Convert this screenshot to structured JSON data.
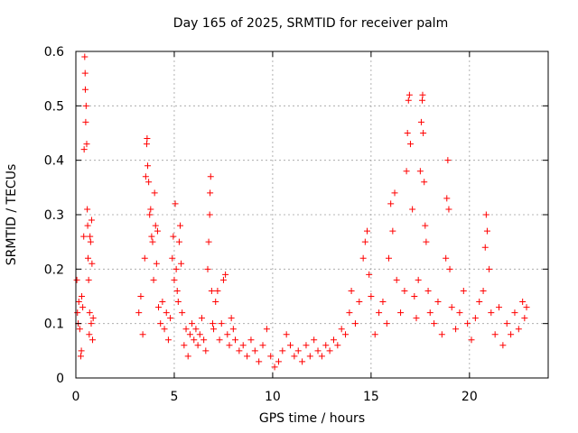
{
  "chart_data": {
    "type": "scatter",
    "title": "Day 165 of 2025, SRMTID for receiver palm",
    "xlabel": "GPS time / hours",
    "ylabel": "SRMTID / TECUs",
    "xlim": [
      0,
      24
    ],
    "ylim": [
      0,
      0.6
    ],
    "x_ticks": [
      0,
      5,
      10,
      15,
      20
    ],
    "x_tick_labels": [
      "0",
      "5",
      "10",
      "15",
      "20"
    ],
    "y_ticks": [
      0,
      0.1,
      0.2,
      0.3,
      0.4,
      0.5,
      0.6
    ],
    "y_tick_labels": [
      "0",
      "0.1",
      "0.2",
      "0.3",
      "0.4",
      "0.5",
      "0.6"
    ],
    "grid": true,
    "marker": "+",
    "color": "#ff0000",
    "series": [
      {
        "name": "SRMTID",
        "points": [
          [
            0.05,
            0.18
          ],
          [
            0.08,
            0.12
          ],
          [
            0.12,
            0.1
          ],
          [
            0.15,
            0.14
          ],
          [
            0.2,
            0.09
          ],
          [
            0.25,
            0.04
          ],
          [
            0.28,
            0.05
          ],
          [
            0.3,
            0.15
          ],
          [
            0.35,
            0.13
          ],
          [
            0.4,
            0.26
          ],
          [
            0.42,
            0.42
          ],
          [
            0.45,
            0.59
          ],
          [
            0.47,
            0.56
          ],
          [
            0.48,
            0.53
          ],
          [
            0.5,
            0.47
          ],
          [
            0.52,
            0.5
          ],
          [
            0.55,
            0.43
          ],
          [
            0.58,
            0.31
          ],
          [
            0.6,
            0.28
          ],
          [
            0.62,
            0.22
          ],
          [
            0.65,
            0.18
          ],
          [
            0.68,
            0.08
          ],
          [
            0.7,
            0.12
          ],
          [
            0.72,
            0.26
          ],
          [
            0.75,
            0.25
          ],
          [
            0.78,
            0.1
          ],
          [
            0.8,
            0.29
          ],
          [
            0.82,
            0.21
          ],
          [
            0.85,
            0.07
          ],
          [
            0.88,
            0.11
          ],
          [
            3.2,
            0.12
          ],
          [
            3.3,
            0.15
          ],
          [
            3.4,
            0.08
          ],
          [
            3.5,
            0.22
          ],
          [
            3.55,
            0.37
          ],
          [
            3.6,
            0.43
          ],
          [
            3.62,
            0.44
          ],
          [
            3.65,
            0.39
          ],
          [
            3.7,
            0.36
          ],
          [
            3.75,
            0.3
          ],
          [
            3.8,
            0.31
          ],
          [
            3.85,
            0.26
          ],
          [
            3.9,
            0.25
          ],
          [
            3.95,
            0.18
          ],
          [
            4.0,
            0.34
          ],
          [
            4.05,
            0.28
          ],
          [
            4.1,
            0.21
          ],
          [
            4.15,
            0.27
          ],
          [
            4.2,
            0.13
          ],
          [
            4.3,
            0.1
          ],
          [
            4.4,
            0.14
          ],
          [
            4.5,
            0.09
          ],
          [
            4.6,
            0.12
          ],
          [
            4.7,
            0.07
          ],
          [
            4.8,
            0.11
          ],
          [
            4.9,
            0.22
          ],
          [
            4.95,
            0.26
          ],
          [
            5.0,
            0.18
          ],
          [
            5.05,
            0.32
          ],
          [
            5.1,
            0.2
          ],
          [
            5.15,
            0.16
          ],
          [
            5.2,
            0.14
          ],
          [
            5.25,
            0.25
          ],
          [
            5.3,
            0.28
          ],
          [
            5.35,
            0.21
          ],
          [
            5.4,
            0.12
          ],
          [
            5.5,
            0.06
          ],
          [
            5.6,
            0.09
          ],
          [
            5.7,
            0.04
          ],
          [
            5.8,
            0.08
          ],
          [
            5.9,
            0.1
          ],
          [
            6.0,
            0.07
          ],
          [
            6.1,
            0.09
          ],
          [
            6.2,
            0.06
          ],
          [
            6.3,
            0.08
          ],
          [
            6.4,
            0.11
          ],
          [
            6.5,
            0.07
          ],
          [
            6.6,
            0.05
          ],
          [
            6.7,
            0.2
          ],
          [
            6.75,
            0.25
          ],
          [
            6.8,
            0.3
          ],
          [
            6.82,
            0.34
          ],
          [
            6.85,
            0.37
          ],
          [
            6.9,
            0.16
          ],
          [
            6.95,
            0.1
          ],
          [
            7.0,
            0.09
          ],
          [
            7.1,
            0.14
          ],
          [
            7.2,
            0.16
          ],
          [
            7.3,
            0.07
          ],
          [
            7.4,
            0.1
          ],
          [
            7.5,
            0.18
          ],
          [
            7.6,
            0.19
          ],
          [
            7.7,
            0.08
          ],
          [
            7.8,
            0.06
          ],
          [
            7.9,
            0.11
          ],
          [
            8.0,
            0.09
          ],
          [
            8.1,
            0.07
          ],
          [
            8.3,
            0.05
          ],
          [
            8.5,
            0.06
          ],
          [
            8.7,
            0.04
          ],
          [
            8.9,
            0.07
          ],
          [
            9.1,
            0.05
          ],
          [
            9.3,
            0.03
          ],
          [
            9.5,
            0.06
          ],
          [
            9.7,
            0.09
          ],
          [
            9.9,
            0.04
          ],
          [
            10.1,
            0.02
          ],
          [
            10.3,
            0.03
          ],
          [
            10.5,
            0.05
          ],
          [
            10.7,
            0.08
          ],
          [
            10.9,
            0.06
          ],
          [
            11.1,
            0.04
          ],
          [
            11.3,
            0.05
          ],
          [
            11.5,
            0.03
          ],
          [
            11.7,
            0.06
          ],
          [
            11.9,
            0.04
          ],
          [
            12.1,
            0.07
          ],
          [
            12.3,
            0.05
          ],
          [
            12.5,
            0.04
          ],
          [
            12.7,
            0.06
          ],
          [
            12.9,
            0.05
          ],
          [
            13.1,
            0.07
          ],
          [
            13.3,
            0.06
          ],
          [
            13.5,
            0.09
          ],
          [
            13.7,
            0.08
          ],
          [
            13.9,
            0.12
          ],
          [
            14.0,
            0.16
          ],
          [
            14.2,
            0.1
          ],
          [
            14.4,
            0.14
          ],
          [
            14.6,
            0.22
          ],
          [
            14.7,
            0.25
          ],
          [
            14.8,
            0.27
          ],
          [
            14.9,
            0.19
          ],
          [
            15.0,
            0.15
          ],
          [
            15.2,
            0.08
          ],
          [
            15.4,
            0.12
          ],
          [
            15.6,
            0.14
          ],
          [
            15.8,
            0.1
          ],
          [
            15.9,
            0.22
          ],
          [
            16.0,
            0.32
          ],
          [
            16.1,
            0.27
          ],
          [
            16.2,
            0.34
          ],
          [
            16.3,
            0.18
          ],
          [
            16.5,
            0.12
          ],
          [
            16.7,
            0.16
          ],
          [
            16.8,
            0.38
          ],
          [
            16.85,
            0.45
          ],
          [
            16.9,
            0.51
          ],
          [
            16.95,
            0.52
          ],
          [
            17.0,
            0.43
          ],
          [
            17.1,
            0.31
          ],
          [
            17.2,
            0.15
          ],
          [
            17.3,
            0.11
          ],
          [
            17.4,
            0.18
          ],
          [
            17.5,
            0.38
          ],
          [
            17.55,
            0.47
          ],
          [
            17.6,
            0.51
          ],
          [
            17.62,
            0.52
          ],
          [
            17.65,
            0.45
          ],
          [
            17.7,
            0.36
          ],
          [
            17.75,
            0.28
          ],
          [
            17.8,
            0.25
          ],
          [
            17.9,
            0.16
          ],
          [
            18.0,
            0.12
          ],
          [
            18.2,
            0.1
          ],
          [
            18.4,
            0.14
          ],
          [
            18.6,
            0.08
          ],
          [
            18.8,
            0.22
          ],
          [
            18.85,
            0.33
          ],
          [
            18.9,
            0.4
          ],
          [
            18.95,
            0.31
          ],
          [
            19.0,
            0.2
          ],
          [
            19.1,
            0.13
          ],
          [
            19.3,
            0.09
          ],
          [
            19.5,
            0.12
          ],
          [
            19.7,
            0.16
          ],
          [
            19.9,
            0.1
          ],
          [
            20.1,
            0.07
          ],
          [
            20.3,
            0.11
          ],
          [
            20.5,
            0.14
          ],
          [
            20.7,
            0.16
          ],
          [
            20.8,
            0.24
          ],
          [
            20.85,
            0.3
          ],
          [
            20.9,
            0.27
          ],
          [
            21.0,
            0.2
          ],
          [
            21.1,
            0.12
          ],
          [
            21.3,
            0.08
          ],
          [
            21.5,
            0.13
          ],
          [
            21.7,
            0.06
          ],
          [
            21.9,
            0.1
          ],
          [
            22.1,
            0.08
          ],
          [
            22.3,
            0.12
          ],
          [
            22.5,
            0.09
          ],
          [
            22.7,
            0.14
          ],
          [
            22.8,
            0.11
          ],
          [
            22.9,
            0.13
          ]
        ]
      }
    ]
  }
}
